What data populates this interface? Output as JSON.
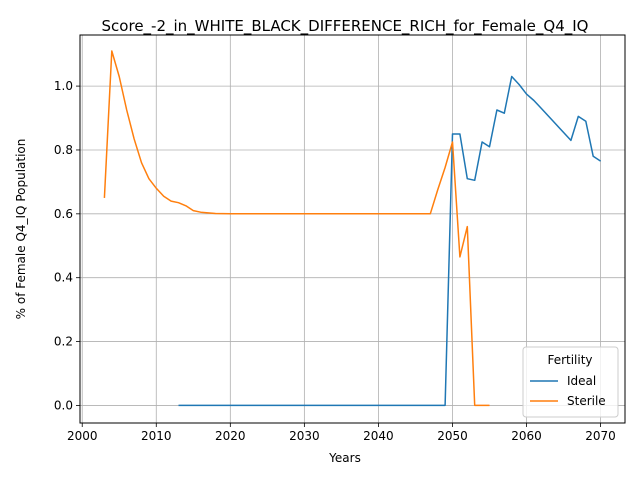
{
  "chart_data": {
    "type": "line",
    "title": "Score_-2_in_WHITE_BLACK_DIFFERENCE_RICH_for_Female_Q4_IQ",
    "xlabel": "Years",
    "ylabel": "% of Female Q4_IQ Population",
    "xlim": [
      1999.7,
      2073.3
    ],
    "ylim": [
      -0.055,
      1.16
    ],
    "xticks": [
      2000,
      2010,
      2020,
      2030,
      2040,
      2050,
      2060,
      2070
    ],
    "yticks": [
      0.0,
      0.2,
      0.4,
      0.6,
      0.8,
      1.0
    ],
    "xtick_labels": [
      "2000",
      "2010",
      "2020",
      "2030",
      "2040",
      "2050",
      "2060",
      "2070"
    ],
    "ytick_labels": [
      "0.0",
      "0.2",
      "0.4",
      "0.6",
      "0.8",
      "1.0"
    ],
    "grid": true,
    "legend": {
      "title": "Fertility",
      "placement": "lower-right"
    },
    "series": [
      {
        "name": "Ideal",
        "color": "#1f77b4",
        "x": [
          2013,
          2020,
          2030,
          2040,
          2049,
          2050,
          2051,
          2052,
          2053,
          2054,
          2055,
          2056,
          2057,
          2058,
          2059,
          2060,
          2061,
          2062,
          2063,
          2064,
          2065,
          2066,
          2067,
          2068,
          2069,
          2070
        ],
        "y": [
          0,
          0,
          0,
          0,
          0,
          0.85,
          0.85,
          0.71,
          0.705,
          0.825,
          0.81,
          0.925,
          0.915,
          1.03,
          1.005,
          0.975,
          0.955,
          0.93,
          0.905,
          0.88,
          0.855,
          0.83,
          0.905,
          0.89,
          0.78,
          0.765
        ]
      },
      {
        "name": "Sterile",
        "color": "#ff7f0e",
        "x": [
          2003,
          2004,
          2005,
          2006,
          2007,
          2008,
          2009,
          2010,
          2011,
          2012,
          2013,
          2014,
          2015,
          2016,
          2017,
          2018,
          2020,
          2030,
          2040,
          2047,
          2048,
          2049,
          2050,
          2051,
          2052,
          2053,
          2054,
          2055
        ],
        "y": [
          0.65,
          1.11,
          1.03,
          0.925,
          0.835,
          0.76,
          0.71,
          0.68,
          0.655,
          0.64,
          0.635,
          0.625,
          0.61,
          0.605,
          0.603,
          0.601,
          0.6,
          0.6,
          0.6,
          0.6,
          0.675,
          0.745,
          0.825,
          0.465,
          0.56,
          0.0,
          0.0,
          0.0
        ]
      }
    ]
  }
}
